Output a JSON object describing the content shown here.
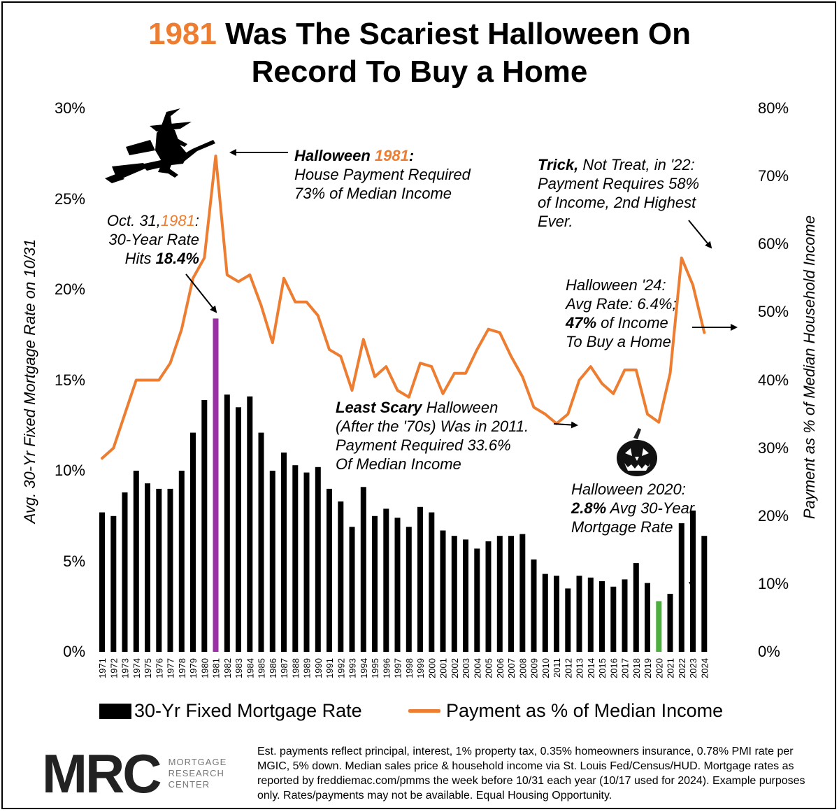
{
  "title": {
    "highlight": "1981",
    "rest": " Was The Scariest Halloween On",
    "line2": "Record To Buy a Home"
  },
  "colors": {
    "accent": "#ed7d31",
    "bar": "#000000",
    "highlight_1981": "#9b30a6",
    "highlight_2020": "#4caf3e"
  },
  "chart_data": {
    "type": "bar+line",
    "categories": [
      "1971",
      "1972",
      "1973",
      "1974",
      "1975",
      "1976",
      "1977",
      "1978",
      "1979",
      "1980",
      "1981",
      "1982",
      "1983",
      "1984",
      "1985",
      "1986",
      "1987",
      "1988",
      "1989",
      "1990",
      "1991",
      "1992",
      "1993",
      "1994",
      "1995",
      "1996",
      "1997",
      "1998",
      "1999",
      "2000",
      "2001",
      "2002",
      "2003",
      "2004",
      "2005",
      "2006",
      "2007",
      "2008",
      "2009",
      "2010",
      "2011",
      "2012",
      "2013",
      "2014",
      "2015",
      "2016",
      "2017",
      "2018",
      "2019",
      "2020",
      "2021",
      "2022",
      "2023",
      "2024"
    ],
    "series": [
      {
        "name": "30-Yr Fixed Mortgage Rate",
        "type": "bar",
        "axis": "left",
        "values": [
          7.7,
          7.5,
          8.8,
          10.0,
          9.3,
          9.0,
          9.0,
          10.0,
          12.1,
          13.9,
          18.4,
          14.2,
          13.5,
          14.1,
          12.1,
          10.0,
          11.0,
          10.3,
          9.9,
          10.2,
          9.0,
          8.3,
          6.9,
          9.1,
          7.5,
          7.9,
          7.4,
          6.9,
          8.0,
          7.7,
          6.7,
          6.4,
          6.2,
          5.7,
          6.1,
          6.4,
          6.4,
          6.5,
          5.1,
          4.3,
          4.2,
          3.5,
          4.2,
          4.1,
          3.9,
          3.6,
          4.0,
          4.9,
          3.8,
          2.8,
          3.2,
          7.1,
          7.8,
          6.4
        ]
      },
      {
        "name": "Payment as % of Median Income",
        "type": "line",
        "axis": "right",
        "values": [
          28.5,
          30.0,
          35.0,
          40.0,
          40.0,
          40.0,
          42.5,
          47.5,
          55.0,
          58.0,
          73.0,
          55.5,
          54.5,
          55.5,
          51.0,
          45.5,
          55.0,
          51.5,
          51.5,
          49.5,
          44.5,
          43.5,
          38.5,
          46.0,
          40.5,
          42.0,
          38.5,
          37.5,
          42.5,
          42.0,
          38.0,
          41.0,
          41.0,
          44.5,
          47.5,
          47.0,
          43.5,
          40.5,
          36.0,
          35.0,
          33.6,
          35.0,
          40.0,
          42.0,
          39.5,
          38.0,
          41.5,
          41.5,
          35.0,
          33.8,
          41.0,
          58.0,
          54.0,
          47.0
        ]
      }
    ],
    "y_left": {
      "label": "Avg. 30-Yr Fixed Mortgage Rate on 10/31",
      "min": 0,
      "max": 30,
      "ticks": [
        "0%",
        "5%",
        "10%",
        "15%",
        "20%",
        "25%",
        "30%"
      ]
    },
    "y_right": {
      "label": "Payment as % of Median Household Income",
      "min": 0,
      "max": 80,
      "ticks": [
        "0%",
        "10%",
        "20%",
        "30%",
        "40%",
        "50%",
        "60%",
        "70%",
        "80%"
      ]
    },
    "grid": false,
    "legend": {
      "position": "bottom",
      "bar_label": "30-Yr Fixed Mortgage Rate",
      "line_label": "Payment as % of Median Income"
    }
  },
  "annotations": {
    "halloween81": {
      "l1_bold": "Halloween ",
      "l1_orange": "1981",
      "l1_colon": ":",
      "l2": "House Payment Required",
      "l3": "73% of Median Income"
    },
    "oct31": {
      "l1a": "Oct. 31,",
      "l1b": "1981",
      "l1c": ":",
      "l2": "30-Year Rate",
      "l3a": "Hits ",
      "l3b": "18.4%"
    },
    "trick22": {
      "l1a": "Trick,",
      "l1b": " Not Treat, in '22:",
      "l2": "Payment Requires 58%",
      "l3": "of Income, 2nd Highest",
      "l4": "Ever."
    },
    "halloween24": {
      "l1": "Halloween '24:",
      "l2": "Avg Rate: 6.4%;",
      "l3a": "47%",
      "l3b": " of Income",
      "l4": "To Buy a Home"
    },
    "leastScary": {
      "l1a": "Least Scary",
      "l1b": " Halloween",
      "l2": "(After the '70s) Was in 2011.",
      "l3": "Payment Required 33.6%",
      "l4": "Of Median Income"
    },
    "halloween2020": {
      "l1": "Halloween 2020:",
      "l2a": "2.8%",
      "l2b": " Avg 30-Year",
      "l3": "Mortgage Rate"
    }
  },
  "logo": {
    "mark": "MRC",
    "sub1": "MORTGAGE",
    "sub2": "RESEARCH",
    "sub3": "CENTER"
  },
  "footnote": "Est. payments reflect principal, interest, 1% property tax, 0.35% homeowners insurance, 0.78% PMI rate per MGIC, 5% down. Median sales price & household income via St. Louis Fed/Census/HUD. Mortgage rates as reported by freddiemac.com/pmms the week before 10/31 each year (10/17 used for 2024). Example purposes only. Rates/payments may not be available. Equal Housing Opportunity.",
  "icons": {
    "witch": "witch-on-broom-icon",
    "pumpkin": "jack-o-lantern-icon"
  }
}
